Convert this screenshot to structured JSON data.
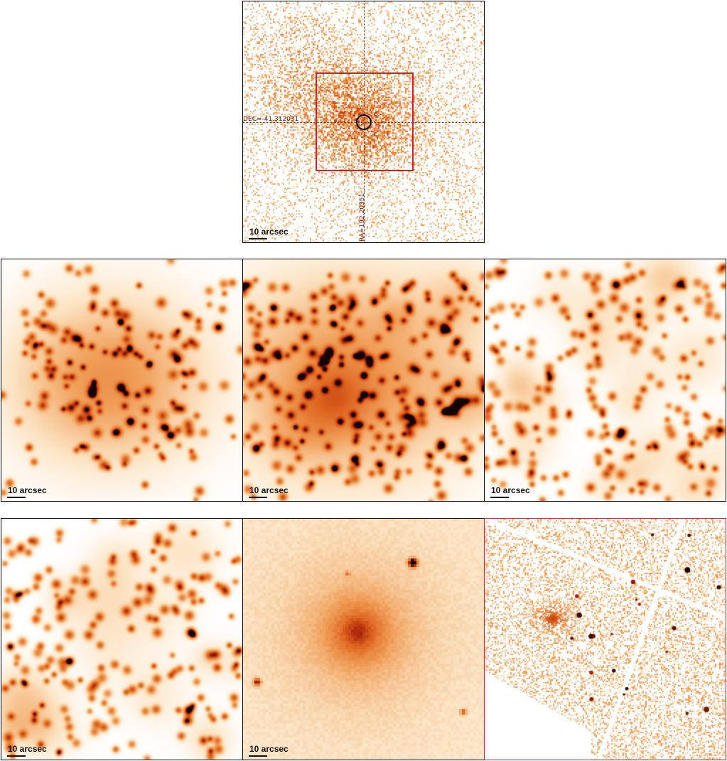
{
  "figure": {
    "scale_label": "10 arcsec",
    "colors": {
      "border": "#000000",
      "highlight_border": "#c0282a",
      "colormap_light": "#fbe3c4",
      "colormap_mid": "#ee8a3a",
      "colormap_dark": "#b3200a"
    }
  },
  "top_panel": {
    "dec_label": "DEC=-41.312031",
    "ra_label": "RA=192.20351"
  },
  "panels": [
    {
      "id": "top",
      "kind": "raw-xray-counts",
      "scale_label": "10 arcsec"
    },
    {
      "id": "middle-left",
      "kind": "smoothed-soft-band",
      "scale_label": "10 arcsec"
    },
    {
      "id": "middle-center",
      "kind": "smoothed-medium-band",
      "scale_label": "10 arcsec"
    },
    {
      "id": "middle-right",
      "kind": "smoothed-hard-band",
      "scale_label": "10 arcsec"
    },
    {
      "id": "bottom-left",
      "kind": "smoothed-noise",
      "scale_label": "10 arcsec"
    },
    {
      "id": "bottom-center",
      "kind": "optical-galaxy",
      "scale_label": "10 arcsec"
    },
    {
      "id": "bottom-right",
      "kind": "wide-field-mosaic",
      "scale_label": ""
    }
  ]
}
